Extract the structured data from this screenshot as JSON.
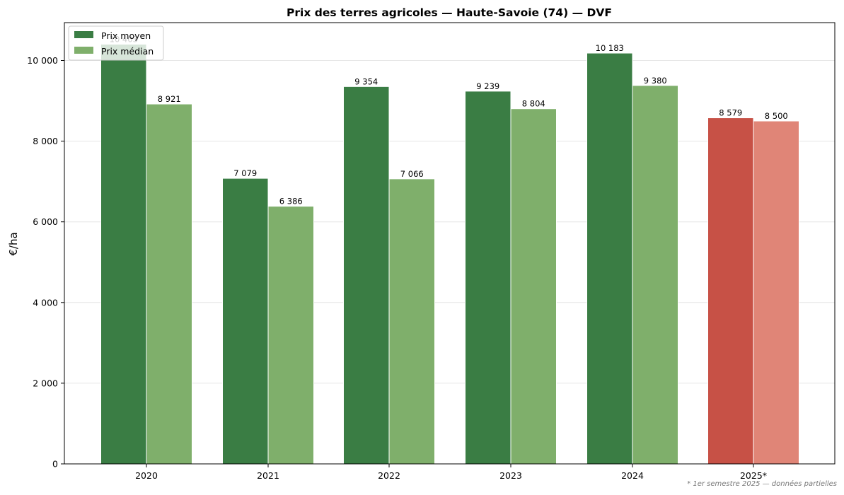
{
  "chart_data": {
    "type": "bar",
    "title": "Prix des terres agricoles — Haute-Savoie (74) — DVF",
    "xlabel": "",
    "ylabel": "€/ha",
    "categories": [
      "2020",
      "2021",
      "2022",
      "2023",
      "2024",
      "2025*"
    ],
    "series": [
      {
        "name": "Prix moyen",
        "values": [
          10403,
          7079,
          9354,
          9239,
          10183,
          8579
        ],
        "labels": [
          "10 403",
          "7 079",
          "9 354",
          "9 239",
          "10 183",
          "8 579"
        ],
        "color": "#3a7d44",
        "highlight_color": "#c75146"
      },
      {
        "name": "Prix médian",
        "values": [
          8921,
          6386,
          7066,
          8804,
          9380,
          8500
        ],
        "labels": [
          "8 921",
          "6 386",
          "7 066",
          "8 804",
          "9 380",
          "8 500"
        ],
        "color": "#7faf6b",
        "highlight_color": "#e08577"
      }
    ],
    "highlighted_category": "2025*",
    "ylim": [
      0,
      10950
    ],
    "yticks": [
      0,
      2000,
      4000,
      6000,
      8000,
      10000
    ],
    "ytick_labels": [
      "0",
      "2 000",
      "4 000",
      "6 000",
      "8 000",
      "10 000"
    ],
    "grid": "horizontal",
    "legend_position": "upper left",
    "footnote": "* 1er semestre 2025 — données partielles"
  }
}
